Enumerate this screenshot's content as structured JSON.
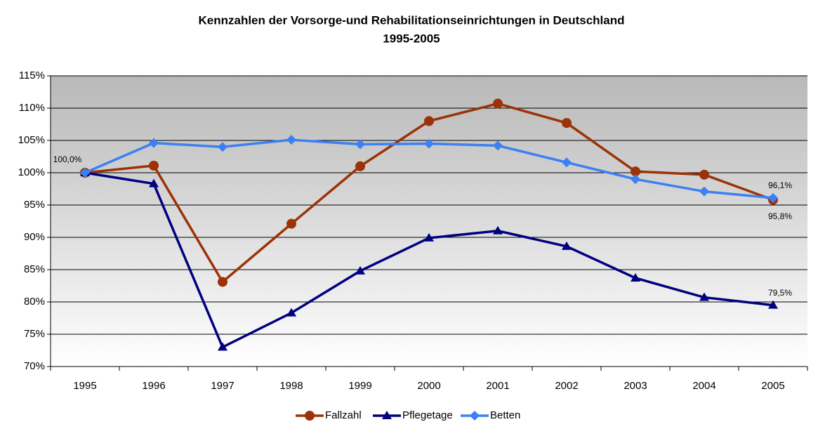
{
  "chart_data": {
    "type": "line",
    "title": [
      "Kennzahlen der Vorsorge-und Rehabilitationseinrichtungen in Deutschland",
      "1995-2005"
    ],
    "categories": [
      "1995",
      "1996",
      "1997",
      "1998",
      "1999",
      "2000",
      "2001",
      "2002",
      "2003",
      "2004",
      "2005"
    ],
    "series": [
      {
        "name": "Fallzahl",
        "color": "#9c3208",
        "marker": "circle",
        "values": [
          100,
          101.1,
          83.1,
          92.1,
          101.0,
          108.0,
          110.7,
          107.7,
          100.2,
          99.7,
          95.8
        ],
        "value_labels": [
          "100,0%",
          null,
          null,
          null,
          null,
          null,
          null,
          null,
          null,
          null,
          "95,8%"
        ]
      },
      {
        "name": "Pflegetage",
        "color": "#000080",
        "marker": "triangle",
        "values": [
          100,
          98.3,
          73.0,
          78.3,
          84.8,
          89.9,
          91.0,
          88.6,
          83.7,
          80.7,
          79.5
        ],
        "value_labels": [
          null,
          null,
          null,
          null,
          null,
          null,
          null,
          null,
          null,
          null,
          "79,5%"
        ]
      },
      {
        "name": "Betten",
        "color": "#3c80f2",
        "marker": "diamond",
        "values": [
          100,
          104.6,
          104.0,
          105.1,
          104.4,
          104.5,
          104.2,
          101.6,
          99.0,
          97.1,
          96.1
        ],
        "value_labels": [
          null,
          null,
          null,
          null,
          null,
          null,
          null,
          null,
          null,
          null,
          "96,1%"
        ]
      }
    ],
    "ylim": [
      70,
      115
    ],
    "yticks": [
      {
        "value": 70,
        "label": "70%"
      },
      {
        "value": 75,
        "label": "75%"
      },
      {
        "value": 80,
        "label": "80%"
      },
      {
        "value": 85,
        "label": "85%"
      },
      {
        "value": 90,
        "label": "90%"
      },
      {
        "value": 95,
        "label": "95%"
      },
      {
        "value": 100,
        "label": "100%"
      },
      {
        "value": 105,
        "label": "105%"
      },
      {
        "value": 110,
        "label": "110%"
      },
      {
        "value": 115,
        "label": "115%"
      }
    ],
    "grid": true,
    "legend": "bottom"
  }
}
